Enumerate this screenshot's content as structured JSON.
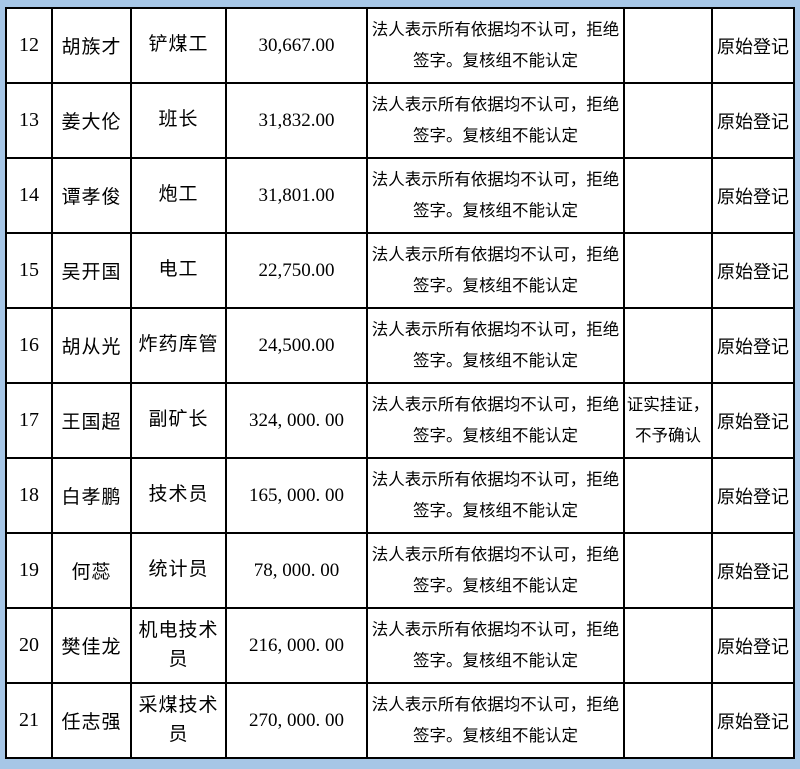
{
  "page": {
    "background_color": "#a6c6e6"
  },
  "table": {
    "description": "wage-registration-review-table",
    "border_color": "#000000",
    "cell_background": "#ffffff",
    "text_color": "#000000",
    "rows": [
      {
        "no": "12",
        "name": "胡族才",
        "job": "铲煤工",
        "amount": "30,667.00",
        "remark": "法人表示所有依据均不认可，拒绝签字。复核组不能认定",
        "review": "",
        "register": "原始登记"
      },
      {
        "no": "13",
        "name": "姜大伦",
        "job": "班长",
        "amount": "31,832.00",
        "remark": "法人表示所有依据均不认可，拒绝签字。复核组不能认定",
        "review": "",
        "register": "原始登记"
      },
      {
        "no": "14",
        "name": "谭孝俊",
        "job": "炮工",
        "amount": "31,801.00",
        "remark": "法人表示所有依据均不认可，拒绝签字。复核组不能认定",
        "review": "",
        "register": "原始登记"
      },
      {
        "no": "15",
        "name": "吴开国",
        "job": "电工",
        "amount": "22,750.00",
        "remark": "法人表示所有依据均不认可，拒绝签字。复核组不能认定",
        "review": "",
        "register": "原始登记"
      },
      {
        "no": "16",
        "name": "胡从光",
        "job": "炸药库管",
        "amount": "24,500.00",
        "remark": "法人表示所有依据均不认可，拒绝签字。复核组不能认定",
        "review": "",
        "register": "原始登记"
      },
      {
        "no": "17",
        "name": "王国超",
        "job": "副矿长",
        "amount": "324, 000. 00",
        "remark": "法人表示所有依据均不认可，拒绝签字。复核组不能认定",
        "review": "证实挂证，不予确认",
        "register": "原始登记"
      },
      {
        "no": "18",
        "name": "白孝鹏",
        "job": "技术员",
        "amount": "165, 000. 00",
        "remark": "法人表示所有依据均不认可，拒绝签字。复核组不能认定",
        "review": "",
        "register": "原始登记"
      },
      {
        "no": "19",
        "name": "何蕊",
        "job": "统计员",
        "amount": "78, 000. 00",
        "remark": "法人表示所有依据均不认可，拒绝签字。复核组不能认定",
        "review": "",
        "register": "原始登记"
      },
      {
        "no": "20",
        "name": "樊佳龙",
        "job": "机电技术员",
        "amount": "216, 000. 00",
        "remark": "法人表示所有依据均不认可，拒绝签字。复核组不能认定",
        "review": "",
        "register": "原始登记"
      },
      {
        "no": "21",
        "name": "任志强",
        "job": "采煤技术员",
        "amount": "270, 000. 00",
        "remark": "法人表示所有依据均不认可，拒绝签字。复核组不能认定",
        "review": "",
        "register": "原始登记"
      }
    ]
  }
}
